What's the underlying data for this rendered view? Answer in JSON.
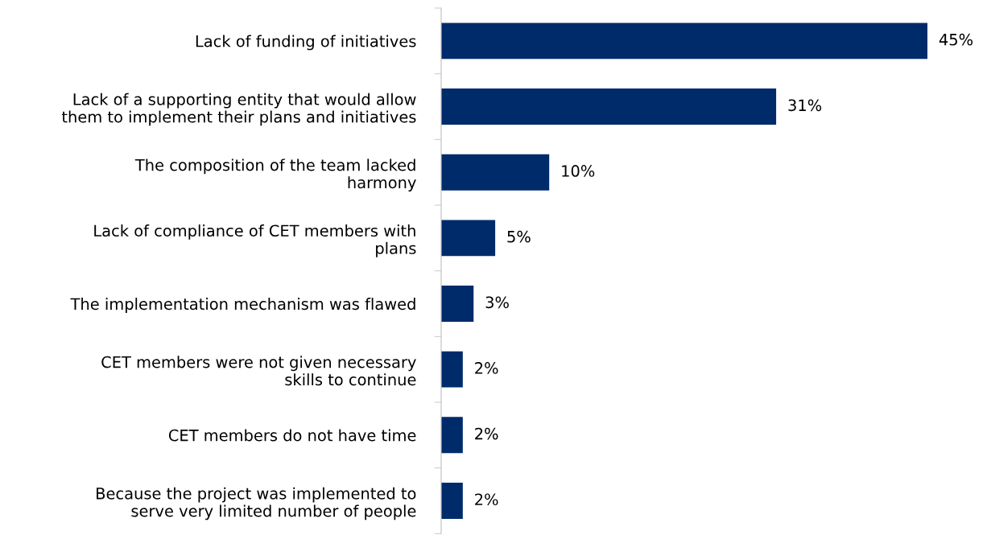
{
  "chart_data": {
    "type": "bar",
    "orientation": "horizontal",
    "categories": [
      "Lack of funding of initiatives",
      "Lack of a supporting entity that would allow\nthem to implement their plans and initiatives",
      "The composition of the team lacked\nharmony",
      "Lack of compliance of CET members with\nplans",
      "The implementation mechanism was flawed",
      "CET members were not given necessary\nskills to continue",
      "CET members do not have time",
      "Because the project was implemented to\nserve very limited number of people"
    ],
    "values": [
      45,
      31,
      10,
      5,
      3,
      2,
      2,
      2
    ],
    "value_labels": [
      "45%",
      "31%",
      "10%",
      "5%",
      "3%",
      "2%",
      "2%",
      "2%"
    ],
    "color": "#002b6b",
    "grid": false,
    "legend": false
  }
}
